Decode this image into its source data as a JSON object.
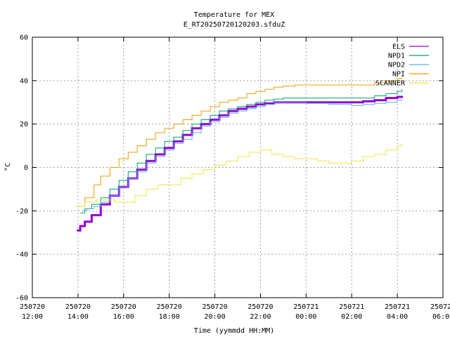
{
  "chart_data": {
    "type": "line",
    "title": "Temperature for MEX",
    "subtitle": "E_RT20250720120203.sfduZ",
    "xlabel": "Time (yymmdd HH:MM)",
    "ylabel": "°C",
    "xlim": [
      12,
      30
    ],
    "ylim": [
      -60,
      60
    ],
    "grid": true,
    "legend_position": "top-right",
    "x_ticks": [
      {
        "value": 12,
        "line1": "250720",
        "line2": "12:00"
      },
      {
        "value": 14,
        "line1": "250720",
        "line2": "14:00"
      },
      {
        "value": 16,
        "line1": "250720",
        "line2": "16:00"
      },
      {
        "value": 18,
        "line1": "250720",
        "line2": "18:00"
      },
      {
        "value": 20,
        "line1": "250720",
        "line2": "20:00"
      },
      {
        "value": 22,
        "line1": "250720",
        "line2": "22:00"
      },
      {
        "value": 24,
        "line1": "250721",
        "line2": "00:00"
      },
      {
        "value": 26,
        "line1": "250721",
        "line2": "02:00"
      },
      {
        "value": 28,
        "line1": "250721",
        "line2": "04:00"
      },
      {
        "value": 30,
        "line1": "250721",
        "line2": "06:00"
      }
    ],
    "y_ticks": [
      -60,
      -40,
      -20,
      0,
      20,
      40,
      60
    ],
    "series": [
      {
        "name": "ELS",
        "color": "#9400d3",
        "width": 3,
        "x": [
          13.95,
          14.1,
          14.3,
          14.6,
          15.0,
          15.4,
          15.8,
          16.2,
          16.6,
          17.0,
          17.4,
          17.8,
          18.2,
          18.6,
          19.0,
          19.4,
          19.8,
          20.2,
          20.6,
          21.0,
          21.4,
          21.8,
          22.2,
          22.6,
          23.0,
          23.5,
          24.0,
          25.0,
          26.0,
          26.5,
          27.0,
          27.5,
          28.0,
          28.2
        ],
        "y": [
          -29,
          -27,
          -25,
          -22,
          -17,
          -13,
          -9,
          -5,
          -1,
          3,
          6,
          9,
          12,
          15,
          18,
          20,
          22,
          24,
          26,
          27,
          28,
          29,
          29.5,
          30,
          30,
          30,
          30,
          30,
          30,
          30.5,
          31,
          32,
          32.5,
          33
        ]
      },
      {
        "name": "NPD1",
        "color": "#009e73",
        "width": 1,
        "x": [
          14.1,
          14.3,
          14.6,
          15.0,
          15.4,
          15.8,
          16.2,
          16.6,
          17.0,
          17.4,
          17.8,
          18.2,
          18.6,
          19.0,
          19.4,
          19.8,
          20.2,
          20.6,
          21.0,
          21.4,
          21.8,
          22.2,
          22.6,
          23.0,
          23.5,
          24.0,
          25.0,
          26.0,
          26.5,
          27.0,
          27.5,
          28.0,
          28.2
        ],
        "y": [
          -21,
          -19,
          -17,
          -14,
          -10,
          -6,
          -2,
          2,
          6,
          9,
          12,
          14,
          17,
          20,
          22,
          24,
          26,
          27,
          28,
          29,
          30,
          31,
          31.5,
          32,
          32,
          32,
          32,
          32,
          32,
          33,
          34,
          35,
          36
        ]
      },
      {
        "name": "NPD2",
        "color": "#56b4e9",
        "width": 1,
        "x": [
          14.2,
          14.4,
          14.7,
          15.0,
          15.4,
          15.8,
          16.2,
          16.6,
          17.0,
          17.4,
          17.8,
          18.2,
          18.6,
          19.0,
          19.4,
          19.8,
          20.2,
          20.6,
          21.0,
          21.4,
          21.8,
          22.2,
          22.6,
          23.0,
          23.5,
          24.0,
          25.0,
          26.0,
          26.5,
          27.0,
          27.5,
          28.0,
          28.2
        ],
        "y": [
          -20,
          -19,
          -18,
          -16,
          -13,
          -9,
          -5,
          -2,
          2,
          5,
          8,
          11,
          13,
          16,
          19,
          21,
          23,
          25,
          26,
          27,
          28,
          29,
          30,
          30,
          30,
          29.5,
          29,
          28.5,
          29,
          29.5,
          30,
          31,
          31.5
        ]
      },
      {
        "name": "NPI",
        "color": "#e69f00",
        "width": 1,
        "x": [
          14.0,
          14.3,
          14.7,
          15.0,
          15.4,
          15.8,
          16.2,
          16.6,
          17.0,
          17.4,
          17.8,
          18.2,
          18.6,
          19.0,
          19.4,
          19.8,
          20.2,
          20.6,
          21.0,
          21.4,
          21.8,
          22.2,
          22.6,
          23.0,
          23.5,
          24.0,
          25.0,
          26.0,
          27.0,
          27.5,
          28.0,
          28.2
        ],
        "y": [
          -18,
          -14,
          -8,
          -4,
          0,
          4,
          7,
          10,
          13,
          16,
          18,
          20,
          22,
          24,
          26,
          28,
          30,
          31,
          32,
          34,
          35,
          36,
          37,
          37.5,
          38,
          38,
          38,
          38,
          39,
          40,
          41,
          41.5
        ]
      },
      {
        "name": "SCANNER",
        "color": "#f0e442",
        "width": 1,
        "x": [
          13.9,
          14.3,
          14.8,
          15.2,
          15.6,
          16.0,
          16.5,
          17.0,
          17.5,
          18.0,
          18.5,
          19.0,
          19.5,
          20.0,
          20.5,
          21.0,
          21.5,
          22.0,
          22.5,
          23.0,
          23.5,
          24.0,
          24.5,
          25.0,
          25.5,
          26.0,
          26.5,
          27.0,
          27.5,
          28.0,
          28.2
        ],
        "y": [
          -18,
          -16,
          -15,
          -15,
          -16,
          -16,
          -13,
          -10,
          -8,
          -8,
          -5,
          -3,
          -1,
          1,
          3,
          5,
          7,
          8,
          6,
          5,
          4,
          4,
          3,
          2,
          2,
          3,
          5,
          6,
          8,
          10,
          11
        ]
      }
    ]
  }
}
